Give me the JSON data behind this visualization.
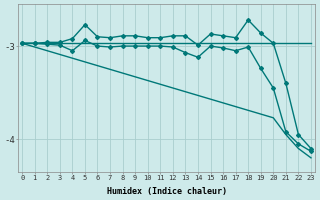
{
  "xlabel": "Humidex (Indice chaleur)",
  "ylabel": "",
  "background_color": "#ceeaea",
  "grid_color": "#aacece",
  "line_color": "#007878",
  "x_ticks": [
    0,
    1,
    2,
    3,
    4,
    5,
    6,
    7,
    8,
    9,
    10,
    11,
    12,
    13,
    14,
    15,
    16,
    17,
    18,
    19,
    20,
    21,
    22,
    23
  ],
  "y_ticks": [
    -4,
    -3
  ],
  "ylim": [
    -4.35,
    -2.55
  ],
  "xlim": [
    -0.3,
    23.3
  ],
  "series": [
    {
      "x": [
        0,
        1,
        2,
        3,
        4,
        5,
        6,
        7,
        8,
        9,
        10,
        11,
        12,
        13,
        14,
        15,
        16,
        17,
        18,
        19,
        20,
        21,
        22,
        23
      ],
      "y": [
        -2.97,
        -2.97,
        -2.96,
        -2.96,
        -2.92,
        -2.77,
        -2.9,
        -2.91,
        -2.89,
        -2.89,
        -2.91,
        -2.91,
        -2.89,
        -2.89,
        -2.99,
        -2.87,
        -2.89,
        -2.91,
        -2.72,
        -2.86,
        -2.97,
        -3.4,
        -3.95,
        -4.1
      ],
      "marker": "D",
      "markersize": 2.0,
      "linewidth": 1.0,
      "has_marker": true
    },
    {
      "x": [
        0,
        1,
        2,
        3,
        4,
        5,
        6,
        7,
        8,
        9,
        10,
        11,
        12,
        13,
        14,
        15,
        16,
        17,
        18,
        19,
        20,
        21,
        22,
        23
      ],
      "y": [
        -2.97,
        -2.97,
        -2.97,
        -2.97,
        -2.97,
        -2.97,
        -2.97,
        -2.97,
        -2.97,
        -2.97,
        -2.97,
        -2.97,
        -2.97,
        -2.97,
        -2.97,
        -2.97,
        -2.97,
        -2.97,
        -2.97,
        -2.97,
        -2.97,
        -2.97,
        -2.97,
        -2.97
      ],
      "marker": null,
      "markersize": 0,
      "linewidth": 1.0,
      "has_marker": false
    },
    {
      "x": [
        0,
        1,
        2,
        3,
        4,
        5,
        6,
        7,
        8,
        9,
        10,
        11,
        12,
        13,
        14,
        15,
        16,
        17,
        18,
        19,
        20,
        21,
        22,
        23
      ],
      "y": [
        -2.97,
        -2.97,
        -2.98,
        -2.99,
        -3.05,
        -2.94,
        -3.0,
        -3.01,
        -3.0,
        -3.0,
        -3.0,
        -3.0,
        -3.01,
        -3.07,
        -3.12,
        -3.0,
        -3.02,
        -3.05,
        -3.01,
        -3.24,
        -3.45,
        -3.92,
        -4.05,
        -4.13
      ],
      "marker": "D",
      "markersize": 2.0,
      "linewidth": 1.0,
      "has_marker": true
    },
    {
      "x": [
        0,
        1,
        2,
        3,
        4,
        5,
        6,
        7,
        8,
        9,
        10,
        11,
        12,
        13,
        14,
        15,
        16,
        17,
        18,
        19,
        20,
        21,
        22,
        23
      ],
      "y": [
        -2.97,
        -3.01,
        -3.05,
        -3.09,
        -3.13,
        -3.17,
        -3.21,
        -3.25,
        -3.29,
        -3.33,
        -3.37,
        -3.41,
        -3.45,
        -3.49,
        -3.53,
        -3.57,
        -3.61,
        -3.65,
        -3.69,
        -3.73,
        -3.77,
        -3.95,
        -4.1,
        -4.2
      ],
      "marker": null,
      "markersize": 0,
      "linewidth": 1.0,
      "has_marker": false
    }
  ]
}
